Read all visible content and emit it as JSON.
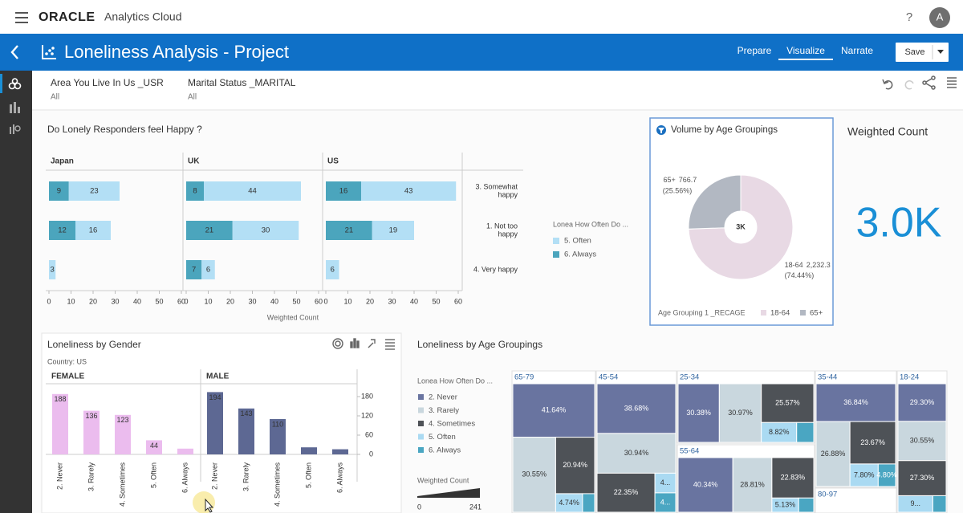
{
  "app": {
    "brand": "ORACLE",
    "product": "Analytics Cloud",
    "help": "?",
    "avatar": "A"
  },
  "project": {
    "title": "Loneliness Analysis - Project",
    "tabs": [
      "Prepare",
      "Visualize",
      "Narrate"
    ],
    "save": "Save"
  },
  "filters": [
    {
      "label": "Area You Live In Us _USR",
      "value": "All"
    },
    {
      "label": "Marital Status _MARITAL",
      "value": "All"
    }
  ],
  "chart_data": [
    {
      "type": "trellis-bar",
      "title": "Do Lonely Responders feel Happy ?",
      "panels": [
        "Japan",
        "UK",
        "US"
      ],
      "categories": [
        "3. Somewhat happy",
        "1. Not too happy",
        "4. Very happy"
      ],
      "legend_title": "Lonea How Often Do ...",
      "series": [
        {
          "name": "5. Often",
          "color": "#b3dff5",
          "values": [
            [
              23,
              16,
              3
            ],
            [
              44,
              30,
              6
            ],
            [
              43,
              19,
              6
            ]
          ]
        },
        {
          "name": "6. Always",
          "color": "#4ba5bd",
          "values": [
            [
              9,
              12,
              null
            ],
            [
              8,
              21,
              7
            ],
            [
              16,
              21,
              null
            ]
          ]
        }
      ],
      "xlim": [
        0,
        60
      ],
      "xticks": [
        0,
        10,
        20,
        30,
        40,
        50,
        60
      ],
      "xlabel": "Weighted Count"
    },
    {
      "type": "donut",
      "title": "Volume by Age Groupings",
      "categories": [
        "18-64",
        "65+"
      ],
      "values": [
        2232.3,
        766.7
      ],
      "value_labels": [
        "2,232.3",
        "766.7"
      ],
      "percent_labels": [
        "(74.44%)",
        "(25.56%)"
      ],
      "colors": [
        "#e8d9e4",
        "#b2b8c2"
      ],
      "center_label": "3K",
      "legend_title": "Age Grouping 1 _RECAGE"
    },
    {
      "type": "kpi",
      "title": "Weighted Count",
      "value": "3.0K"
    },
    {
      "type": "trellis-column",
      "title": "Loneliness by Gender",
      "subtitle": "Country: US",
      "categories": [
        "2. Never",
        "3. Rarely",
        "4. Sometimes",
        "5. Often",
        "6. Always"
      ],
      "series": [
        {
          "name": "FEMALE",
          "color": "#ebbcee",
          "values": [
            188,
            136,
            123,
            44,
            18
          ],
          "value_labels": [
            "188",
            "136",
            "123",
            "44",
            null
          ]
        },
        {
          "name": "MALE",
          "color": "#5d6893",
          "values": [
            194,
            143,
            110,
            22,
            16
          ],
          "value_labels": [
            "194",
            "143",
            "110",
            null,
            null
          ]
        }
      ],
      "ylim": [
        0,
        200
      ],
      "yticks": [
        0,
        60,
        120,
        180
      ]
    },
    {
      "type": "treemap",
      "title": "Loneliness by Age Groupings",
      "legend_title": "Lonea How Often Do ...",
      "categories": [
        "65-79",
        "45-54",
        "25-34",
        "55-64",
        "35-44",
        "18-24",
        "80-97"
      ],
      "series": [
        {
          "name": "2. Never",
          "color": "#6974a0",
          "values": [
            41.64,
            38.68,
            30.38,
            40.34,
            36.84,
            29.3,
            null
          ],
          "value_labels": [
            "41.64%",
            "38.68%",
            "30.38%",
            "40.34%",
            "36.84%",
            "29.30%",
            null
          ]
        },
        {
          "name": "3. Rarely",
          "color": "#c9d7de",
          "values": [
            30.55,
            30.94,
            30.97,
            28.81,
            26.88,
            30.55,
            null
          ],
          "value_labels": [
            "30.55%",
            "30.94%",
            "30.97%",
            "28.81%",
            "26.88%",
            "30.55%",
            null
          ]
        },
        {
          "name": "4. Sometimes",
          "color": "#4e5257",
          "values": [
            20.94,
            22.35,
            25.57,
            22.83,
            23.67,
            27.3,
            null
          ],
          "value_labels": [
            "20.94%",
            "22.35%",
            "25.57%",
            "22.83%",
            "23.67%",
            "27.30%",
            null
          ]
        },
        {
          "name": "5. Often",
          "color": "#aadaf2",
          "values": [
            4.74,
            4.05,
            8.82,
            5.13,
            7.8,
            9.3,
            null
          ],
          "value_labels": [
            "4.74%",
            "4...",
            "8.82%",
            "5.13%",
            "7.80%",
            "9...",
            null
          ]
        },
        {
          "name": "6. Always",
          "color": "#4aa6c2",
          "values": [
            2.13,
            3.98,
            4.26,
            2.89,
            4.8,
            3.55,
            null
          ],
          "value_labels": [
            null,
            "4...",
            null,
            null,
            "4.80%",
            null,
            null
          ]
        }
      ],
      "size_legend": {
        "title": "Weighted Count",
        "min": 0,
        "max": 241
      }
    }
  ]
}
